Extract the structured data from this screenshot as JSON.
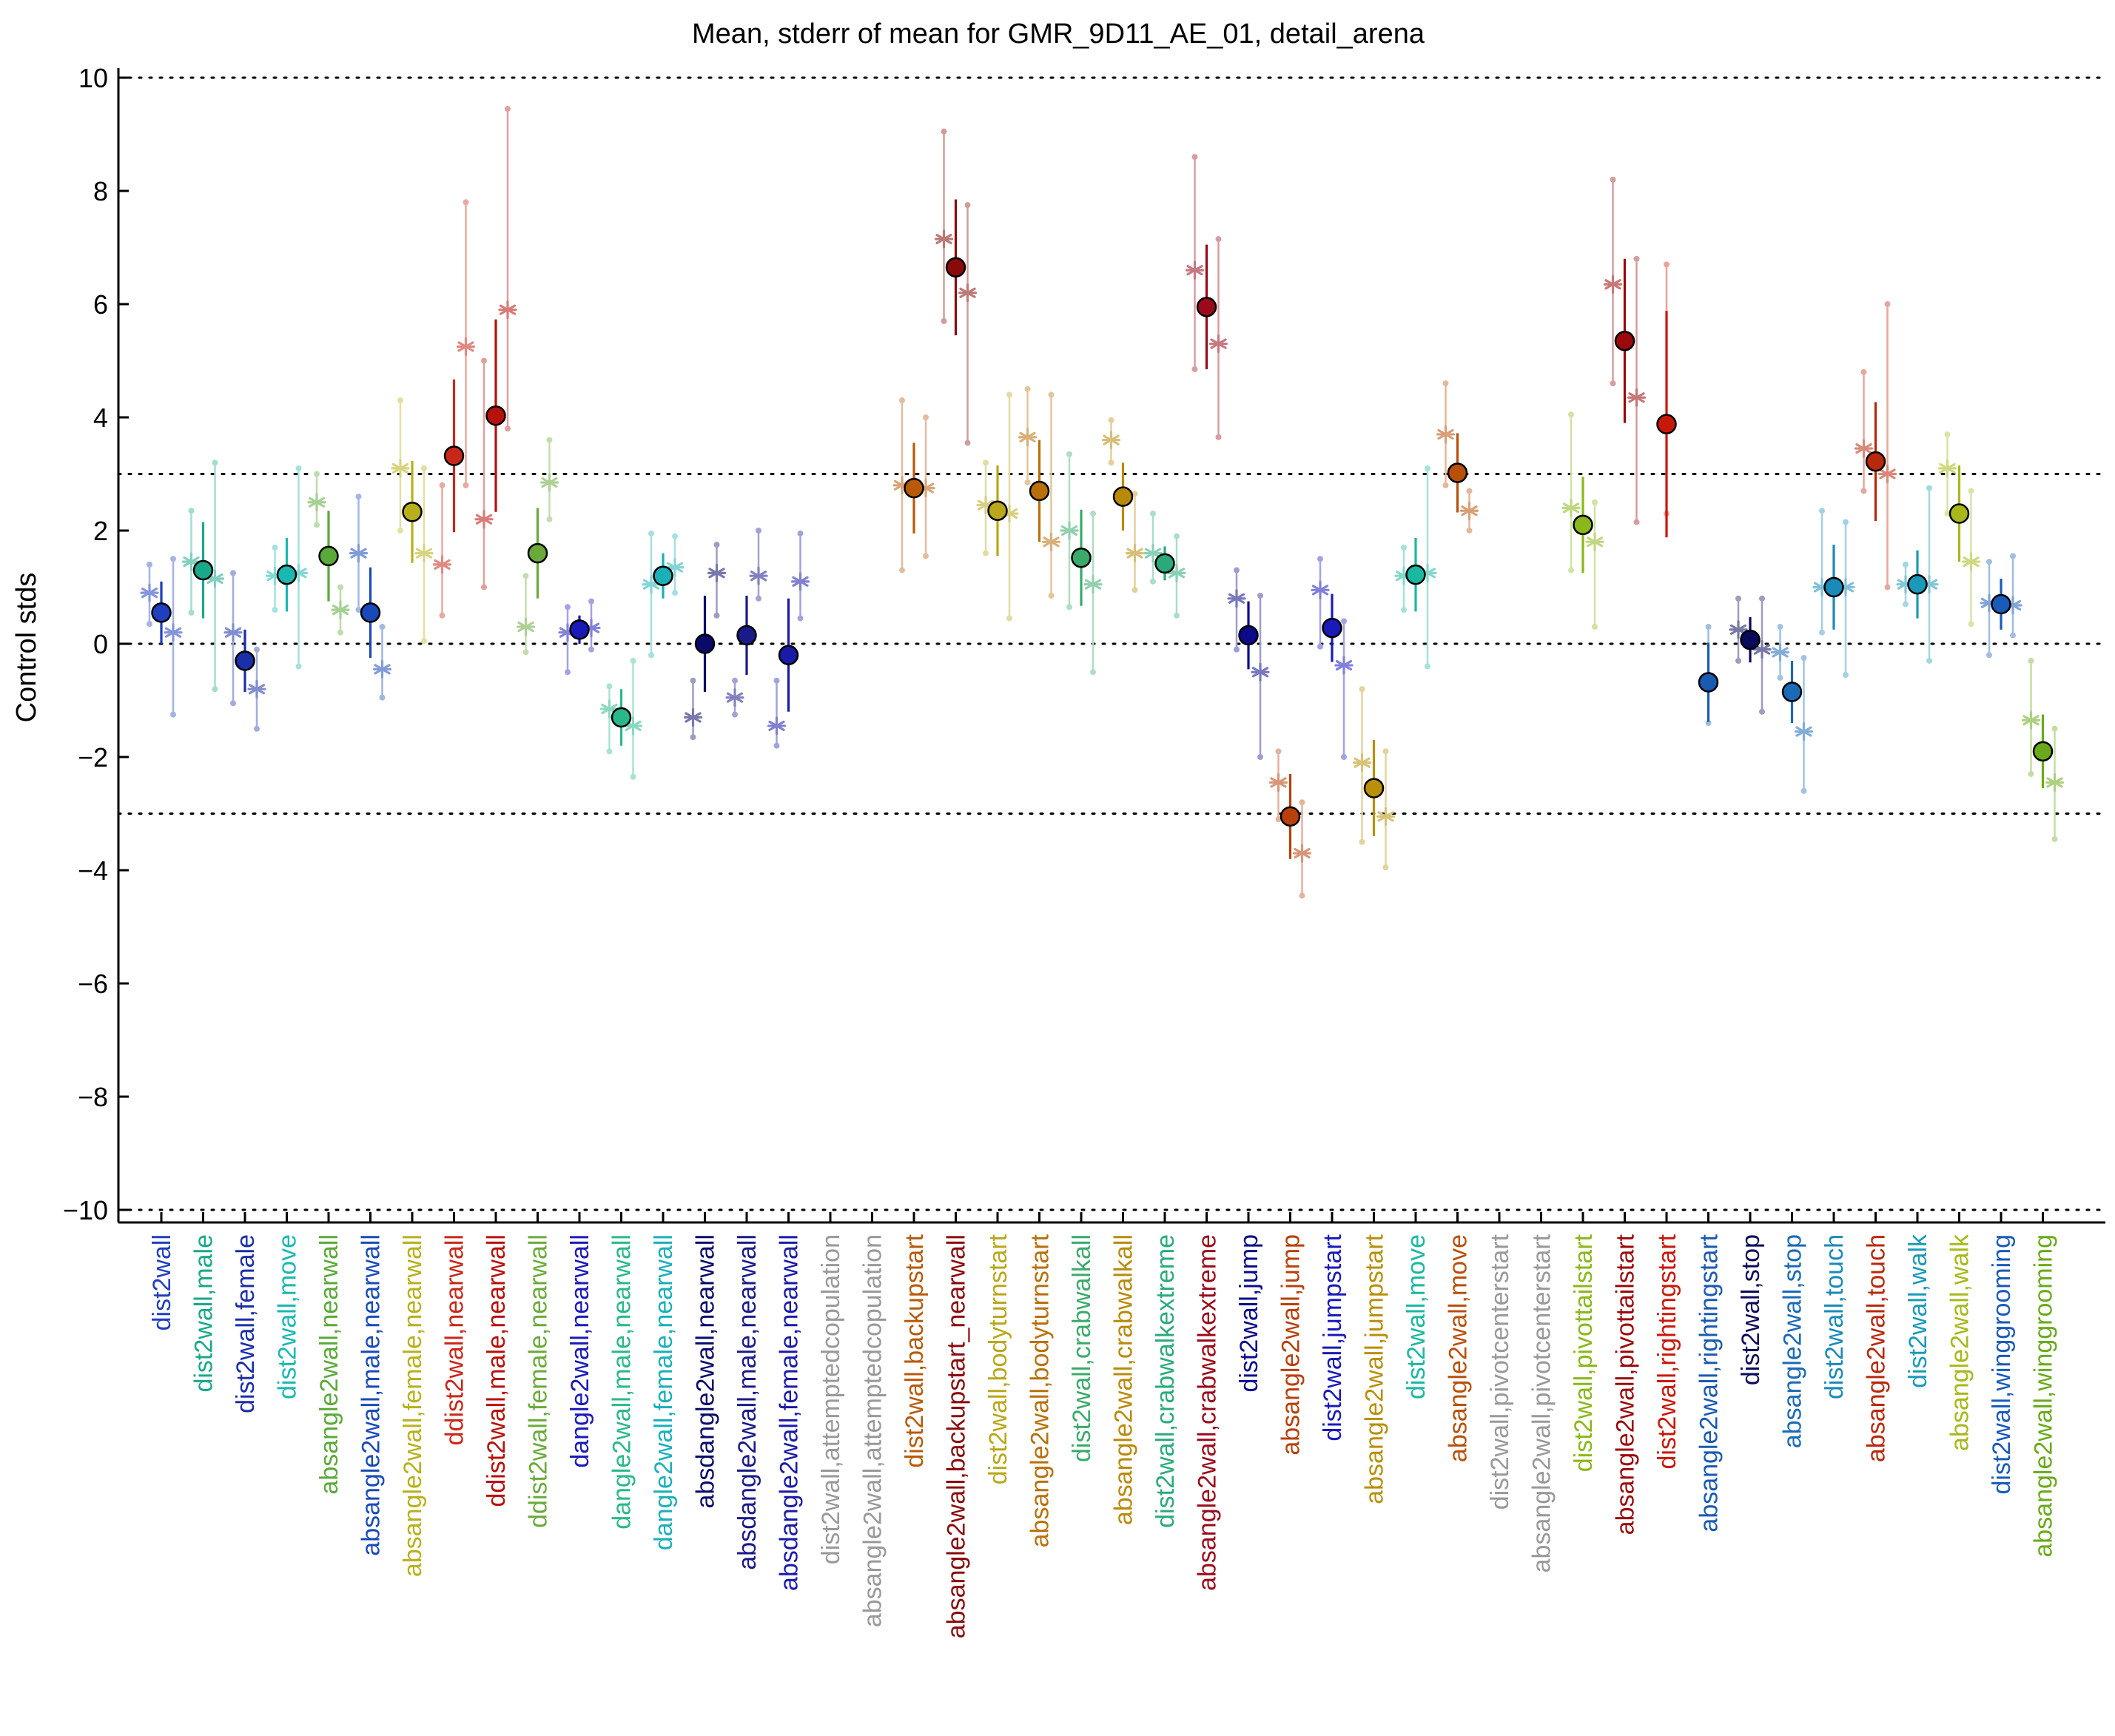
{
  "chart_data": {
    "type": "scatter",
    "title": "Mean, stderr of mean for GMR_9D11_AE_01, detail_arena",
    "xlabel": "",
    "ylabel": "Control stds",
    "ylim": [
      -10,
      10
    ],
    "yticks": [
      -10,
      -8,
      -6,
      -4,
      -2,
      0,
      2,
      4,
      6,
      8,
      10
    ],
    "ytick_labels": [
      "−10",
      "−8",
      "−6",
      "−4",
      "−2",
      "0",
      "2",
      "4",
      "6",
      "8",
      "10"
    ],
    "reference_lines": [
      10,
      3,
      0,
      -3,
      -10
    ],
    "series_legend": [
      "mean (circle)",
      "sex-specific means (asterisks)"
    ],
    "categories": [
      {
        "label": "dist2wall",
        "color": "#1f3fbf",
        "mean": 0.55,
        "err": 0.55,
        "stars": [
          0.9,
          0.2
        ],
        "ranges": [
          [
            0.35,
            1.4
          ],
          [
            -1.25,
            1.5
          ]
        ]
      },
      {
        "label": "dist2wall,male",
        "color": "#1aa88a",
        "mean": 1.3,
        "err": 0.85,
        "stars": [
          1.45,
          1.15
        ],
        "ranges": [
          [
            0.55,
            2.35
          ],
          [
            -0.8,
            3.2
          ]
        ]
      },
      {
        "label": "dist2wall,female",
        "color": "#1a2fa8",
        "mean": -0.3,
        "err": 0.55,
        "stars": [
          0.2,
          -0.8
        ],
        "ranges": [
          [
            -1.05,
            1.25
          ],
          [
            -1.5,
            -0.1
          ]
        ]
      },
      {
        "label": "dist2wall,move",
        "color": "#1ab8b0",
        "mean": 1.22,
        "err": 0.65,
        "stars": [
          1.2,
          1.25
        ],
        "ranges": [
          [
            0.6,
            1.7
          ],
          [
            -0.4,
            3.1
          ]
        ]
      },
      {
        "label": "absangle2wall,nearwall",
        "color": "#5aaa3a",
        "mean": 1.55,
        "err": 0.8,
        "stars": [
          2.5,
          0.6
        ],
        "ranges": [
          [
            2.1,
            3.0
          ],
          [
            0.2,
            1.0
          ]
        ]
      },
      {
        "label": "absangle2wall,male,nearwall",
        "color": "#1a4ab8",
        "mean": 0.55,
        "err": 0.8,
        "stars": [
          1.6,
          -0.45
        ],
        "ranges": [
          [
            0.6,
            2.6
          ],
          [
            -0.95,
            0.3
          ]
        ]
      },
      {
        "label": "absangle2wall,female,nearwall",
        "color": "#b8b01a",
        "mean": 2.33,
        "err": 0.9,
        "stars": [
          3.1,
          1.6
        ],
        "ranges": [
          [
            2.0,
            4.3
          ],
          [
            0.05,
            3.1
          ]
        ]
      },
      {
        "label": "ddist2wall,nearwall",
        "color": "#c8281a",
        "mean": 3.32,
        "err": 1.35,
        "stars": [
          1.4,
          5.25
        ],
        "ranges": [
          [
            0.5,
            2.8
          ],
          [
            2.8,
            7.8
          ]
        ]
      },
      {
        "label": "ddist2wall,male,nearwall",
        "color": "#b8100a",
        "mean": 4.03,
        "err": 1.7,
        "stars": [
          2.2,
          5.9
        ],
        "ranges": [
          [
            1.0,
            5.0
          ],
          [
            3.8,
            9.45
          ]
        ]
      },
      {
        "label": "ddist2wall,female,nearwall",
        "color": "#6aaa3a",
        "mean": 1.6,
        "err": 0.8,
        "stars": [
          0.3,
          2.85
        ],
        "ranges": [
          [
            -0.15,
            1.2
          ],
          [
            2.2,
            3.6
          ]
        ]
      },
      {
        "label": "dangle2wall,nearwall",
        "color": "#1a1ab8",
        "mean": 0.25,
        "err": 0.25,
        "stars": [
          0.2,
          0.28
        ],
        "ranges": [
          [
            -0.5,
            0.65
          ],
          [
            -0.1,
            0.75
          ]
        ]
      },
      {
        "label": "dangle2wall,male,nearwall",
        "color": "#2ab88a",
        "mean": -1.3,
        "err": 0.5,
        "stars": [
          -1.15,
          -1.45
        ],
        "ranges": [
          [
            -1.9,
            -0.75
          ],
          [
            -2.35,
            -0.3
          ]
        ]
      },
      {
        "label": "dangle2wall,female,nearwall",
        "color": "#1ab0b8",
        "mean": 1.2,
        "err": 0.4,
        "stars": [
          1.05,
          1.35
        ],
        "ranges": [
          [
            -0.2,
            1.95
          ],
          [
            0.9,
            1.9
          ]
        ]
      },
      {
        "label": "absdangle2wall,nearwall",
        "color": "#0a0a6a",
        "mean": 0.0,
        "err": 0.85,
        "stars": [
          -1.3,
          1.25
        ],
        "ranges": [
          [
            -1.65,
            -0.65
          ],
          [
            0.5,
            1.75
          ]
        ]
      },
      {
        "label": "absdangle2wall,male,nearwall",
        "color": "#1a1a8a",
        "mean": 0.15,
        "err": 0.7,
        "stars": [
          -0.95,
          1.2
        ],
        "ranges": [
          [
            -1.25,
            -0.65
          ],
          [
            0.8,
            2.0
          ]
        ]
      },
      {
        "label": "absdangle2wall,female,nearwall",
        "color": "#1a1aa8",
        "mean": -0.2,
        "err": 1.0,
        "stars": [
          -1.45,
          1.1
        ],
        "ranges": [
          [
            -1.8,
            -0.65
          ],
          [
            0.45,
            1.95
          ]
        ]
      },
      {
        "label": "dist2wall,attemptedcopulation",
        "color": "#999999",
        "mean": null,
        "err": null,
        "stars": [],
        "ranges": []
      },
      {
        "label": "absangle2wall,attemptedcopulation",
        "color": "#999999",
        "mean": null,
        "err": null,
        "stars": [],
        "ranges": []
      },
      {
        "label": "dist2wall,backupstart",
        "color": "#b85a0a",
        "mean": 2.75,
        "err": 0.8,
        "stars": [
          2.8,
          2.75
        ],
        "ranges": [
          [
            1.3,
            4.3
          ],
          [
            1.55,
            4.0
          ]
        ]
      },
      {
        "label": "absangle2wall,backupstart_nearwall",
        "color": "#8a0a0a",
        "mean": 6.65,
        "err": 1.2,
        "stars": [
          7.15,
          6.2
        ],
        "ranges": [
          [
            5.7,
            9.05
          ],
          [
            3.55,
            7.75
          ]
        ]
      },
      {
        "label": "dist2wall,bodyturnstart",
        "color": "#b8a81a",
        "mean": 2.35,
        "err": 0.8,
        "stars": [
          2.45,
          2.3
        ],
        "ranges": [
          [
            1.6,
            3.2
          ],
          [
            0.45,
            4.4
          ]
        ]
      },
      {
        "label": "absangle2wall,bodyturnstart",
        "color": "#b8700a",
        "mean": 2.7,
        "err": 0.9,
        "stars": [
          3.65,
          1.8
        ],
        "ranges": [
          [
            2.85,
            4.5
          ],
          [
            0.85,
            4.4
          ]
        ]
      },
      {
        "label": "dist2wall,crabwalkall",
        "color": "#3aaa6a",
        "mean": 1.52,
        "err": 0.85,
        "stars": [
          2.0,
          1.05
        ],
        "ranges": [
          [
            0.65,
            3.35
          ],
          [
            -0.5,
            2.3
          ]
        ]
      },
      {
        "label": "absangle2wall,crabwalkall",
        "color": "#b88a0a",
        "mean": 2.6,
        "err": 0.6,
        "stars": [
          3.6,
          1.6
        ],
        "ranges": [
          [
            3.2,
            3.95
          ],
          [
            0.95,
            2.65
          ]
        ]
      },
      {
        "label": "dist2wall,crabwalkextreme",
        "color": "#2aaa7a",
        "mean": 1.42,
        "err": 0.3,
        "stars": [
          1.6,
          1.25
        ],
        "ranges": [
          [
            1.1,
            2.3
          ],
          [
            0.5,
            1.9
          ]
        ]
      },
      {
        "label": "absangle2wall,crabwalkextreme",
        "color": "#9a0a1a",
        "mean": 5.95,
        "err": 1.1,
        "stars": [
          6.6,
          5.3
        ],
        "ranges": [
          [
            4.85,
            8.6
          ],
          [
            3.65,
            7.15
          ]
        ]
      },
      {
        "label": "dist2wall,jump",
        "color": "#0a0a8a",
        "mean": 0.15,
        "err": 0.6,
        "stars": [
          0.8,
          -0.5
        ],
        "ranges": [
          [
            -0.1,
            1.3
          ],
          [
            -2.0,
            0.85
          ]
        ]
      },
      {
        "label": "absangle2wall,jump",
        "color": "#b8400a",
        "mean": -3.05,
        "err": 0.75,
        "stars": [
          -2.45,
          -3.7
        ],
        "ranges": [
          [
            -3.1,
            -1.9
          ],
          [
            -4.45,
            -2.8
          ]
        ]
      },
      {
        "label": "dist2wall,jumpstart",
        "color": "#1a1ab8",
        "mean": 0.28,
        "err": 0.6,
        "stars": [
          0.95,
          -0.38
        ],
        "ranges": [
          [
            -0.05,
            1.5
          ],
          [
            -2.0,
            0.4
          ]
        ]
      },
      {
        "label": "absangle2wall,jumpstart",
        "color": "#b8900a",
        "mean": -2.55,
        "err": 0.85,
        "stars": [
          -2.1,
          -3.05
        ],
        "ranges": [
          [
            -3.5,
            -0.8
          ],
          [
            -3.95,
            -1.9
          ]
        ]
      },
      {
        "label": "dist2wall,move",
        "color": "#1ab8a0",
        "mean": 1.22,
        "err": 0.65,
        "stars": [
          1.2,
          1.25
        ],
        "ranges": [
          [
            0.6,
            1.7
          ],
          [
            -0.4,
            3.1
          ]
        ]
      },
      {
        "label": "absangle2wall,move",
        "color": "#b8500a",
        "mean": 3.02,
        "err": 0.7,
        "stars": [
          3.7,
          2.35
        ],
        "ranges": [
          [
            2.8,
            4.6
          ],
          [
            2.0,
            2.7
          ]
        ]
      },
      {
        "label": "dist2wall,pivotcenterstart",
        "color": "#999999",
        "mean": null,
        "err": null,
        "stars": [],
        "ranges": []
      },
      {
        "label": "absangle2wall,pivotcenterstart",
        "color": "#999999",
        "mean": null,
        "err": null,
        "stars": [],
        "ranges": []
      },
      {
        "label": "dist2wall,pivottailstart",
        "color": "#8ab81a",
        "mean": 2.1,
        "err": 0.85,
        "stars": [
          2.4,
          1.8
        ],
        "ranges": [
          [
            1.3,
            4.05
          ],
          [
            0.3,
            2.5
          ]
        ]
      },
      {
        "label": "absangle2wall,pivottailstart",
        "color": "#9a0a0a",
        "mean": 5.35,
        "err": 1.45,
        "stars": [
          6.35,
          4.35
        ],
        "ranges": [
          [
            4.6,
            8.2
          ],
          [
            2.15,
            6.8
          ]
        ]
      },
      {
        "label": "dist2wall,rightingstart",
        "color": "#c8180a",
        "mean": 3.88,
        "err": 2.0,
        "stars": [],
        "ranges": [
          [
            2.3,
            6.7
          ]
        ]
      },
      {
        "label": "absangle2wall,rightingstart",
        "color": "#1a5ab0",
        "mean": -0.68,
        "err": 0.7,
        "stars": [],
        "ranges": [
          [
            -1.4,
            0.3
          ]
        ]
      },
      {
        "label": "dist2wall,stop",
        "color": "#0a0a5a",
        "mean": 0.07,
        "err": 0.4,
        "stars": [
          0.25,
          -0.1
        ],
        "ranges": [
          [
            -0.3,
            0.8
          ],
          [
            -1.2,
            0.8
          ]
        ]
      },
      {
        "label": "absangle2wall,stop",
        "color": "#1a6ab8",
        "mean": -0.85,
        "err": 0.55,
        "stars": [
          -0.15,
          -1.55
        ],
        "ranges": [
          [
            -0.6,
            0.3
          ],
          [
            -2.6,
            -0.25
          ]
        ]
      },
      {
        "label": "dist2wall,touch",
        "color": "#1a8ab8",
        "mean": 1.0,
        "err": 0.75,
        "stars": [
          1.0,
          1.0
        ],
        "ranges": [
          [
            0.2,
            2.35
          ],
          [
            -0.55,
            2.15
          ]
        ]
      },
      {
        "label": "absangle2wall,touch",
        "color": "#b8280a",
        "mean": 3.22,
        "err": 1.05,
        "stars": [
          3.45,
          3.0
        ],
        "ranges": [
          [
            2.7,
            4.8
          ],
          [
            1.0,
            6.0
          ]
        ]
      },
      {
        "label": "dist2wall,walk",
        "color": "#1a9ab8",
        "mean": 1.05,
        "err": 0.6,
        "stars": [
          1.05,
          1.05
        ],
        "ranges": [
          [
            0.7,
            1.4
          ],
          [
            -0.3,
            2.75
          ]
        ]
      },
      {
        "label": "absangle2wall,walk",
        "color": "#a8b81a",
        "mean": 2.3,
        "err": 0.85,
        "stars": [
          3.1,
          1.45
        ],
        "ranges": [
          [
            2.3,
            3.7
          ],
          [
            0.35,
            2.7
          ]
        ]
      },
      {
        "label": "dist2wall,winggrooming",
        "color": "#1a5ab8",
        "mean": 0.7,
        "err": 0.45,
        "stars": [
          0.72,
          0.68
        ],
        "ranges": [
          [
            -0.2,
            1.45
          ],
          [
            0.15,
            1.55
          ]
        ]
      },
      {
        "label": "absangle2wall,winggrooming",
        "color": "#6aaa1a",
        "mean": -1.9,
        "err": 0.65,
        "stars": [
          -1.35,
          -2.45
        ],
        "ranges": [
          [
            -2.3,
            -0.3
          ],
          [
            -3.45,
            -1.5
          ]
        ]
      }
    ]
  }
}
